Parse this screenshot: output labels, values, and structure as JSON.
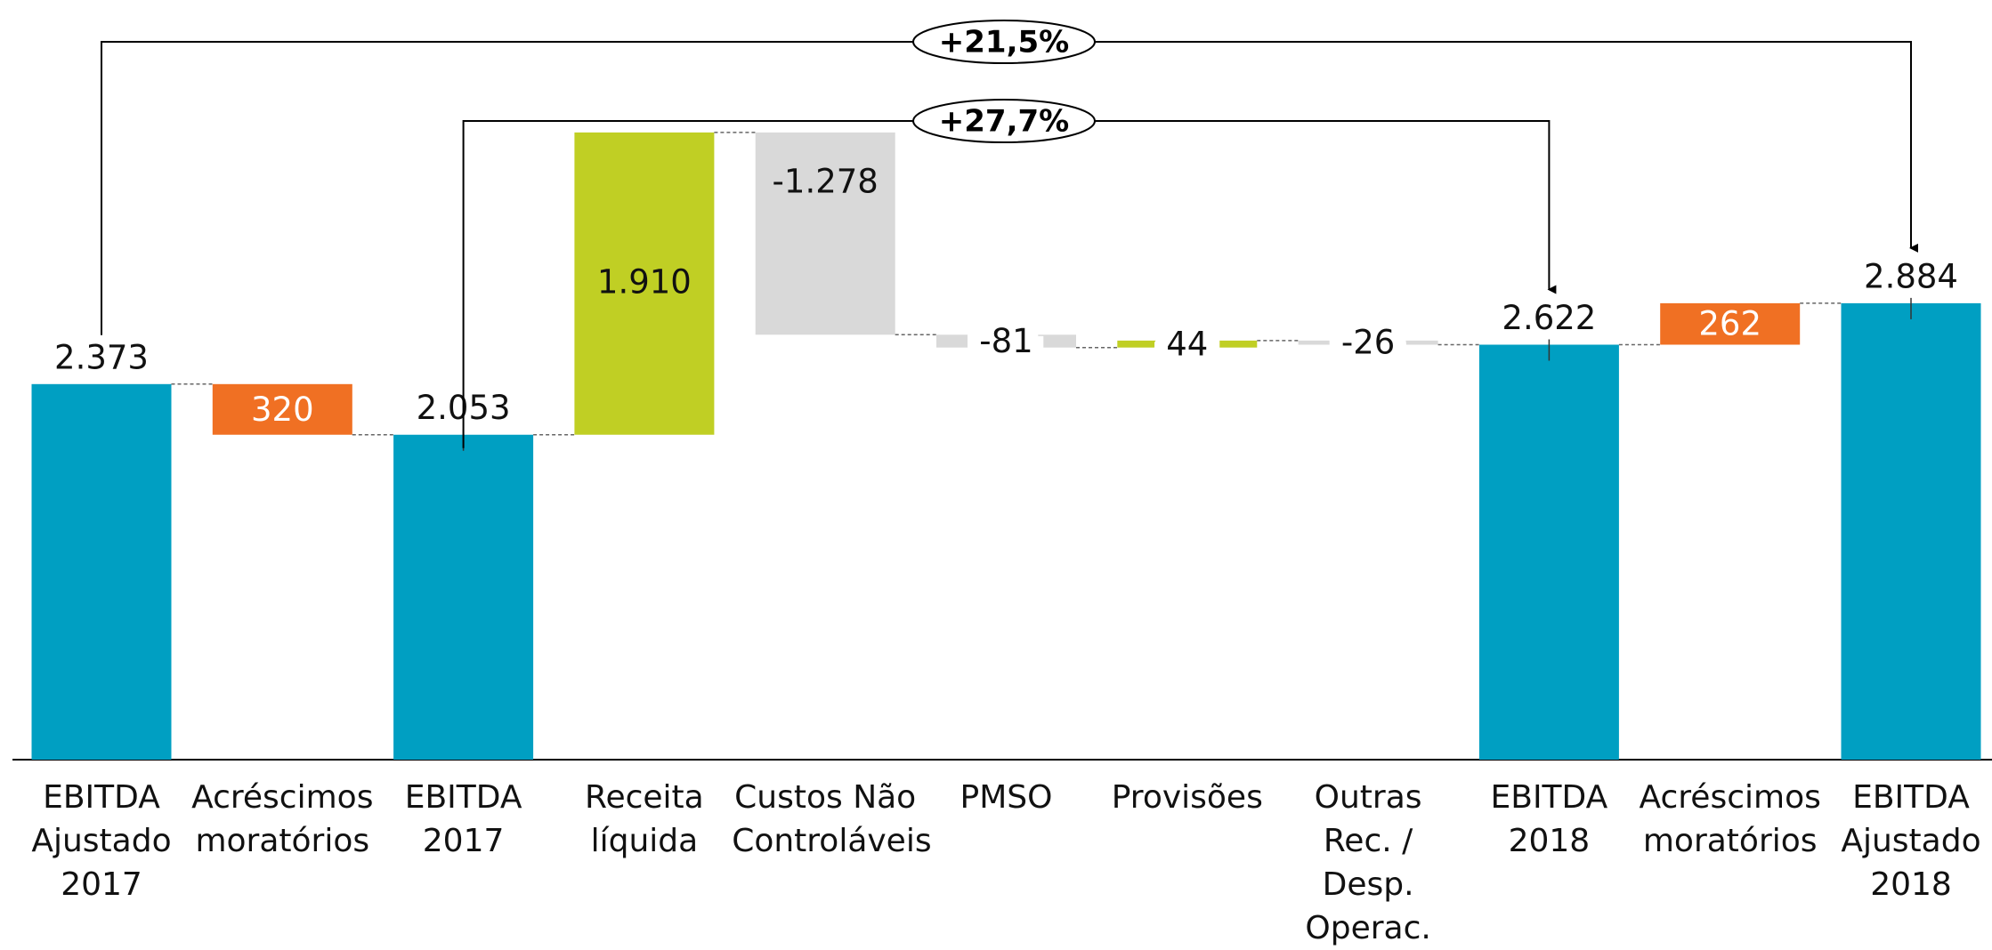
{
  "chart_data": {
    "type": "waterfall",
    "categories": [
      "EBITDA\nAjustado\n2017",
      "Acréscimos\nmoratórios",
      "EBITDA\n2017",
      "Receita\nlíquida",
      "Custos Não\nControláveis",
      "PMSO",
      "Provisões",
      "Outras\nRec. /\nDesp.\nOperac.",
      "EBITDA\n2018",
      "Acréscimos\nmoratórios",
      "EBITDA\nAjustado\n2018"
    ],
    "values": [
      2373,
      -320,
      2053,
      1910,
      -1278,
      -81,
      44,
      -26,
      2622,
      262,
      2884
    ],
    "value_labels": [
      "2.373",
      "320",
      "2.053",
      "1.910",
      "-1.278",
      "-81",
      "44",
      "-26",
      "2.622",
      "262",
      "2.884"
    ],
    "is_total": [
      true,
      false,
      true,
      false,
      false,
      false,
      false,
      false,
      true,
      false,
      true
    ],
    "colors": [
      "#009fc2",
      "#f07023",
      "#009fc2",
      "#c0cf24",
      "#d9d9d9",
      "#d9d9d9",
      "#c0cf24",
      "#d9d9d9",
      "#009fc2",
      "#f07023",
      "#009fc2"
    ],
    "ylim": [
      0,
      4800
    ],
    "annotations": [
      {
        "text": "+21,5%",
        "from": 0,
        "to": 10
      },
      {
        "text": "+27,7%",
        "from": 2,
        "to": 8
      }
    ]
  }
}
